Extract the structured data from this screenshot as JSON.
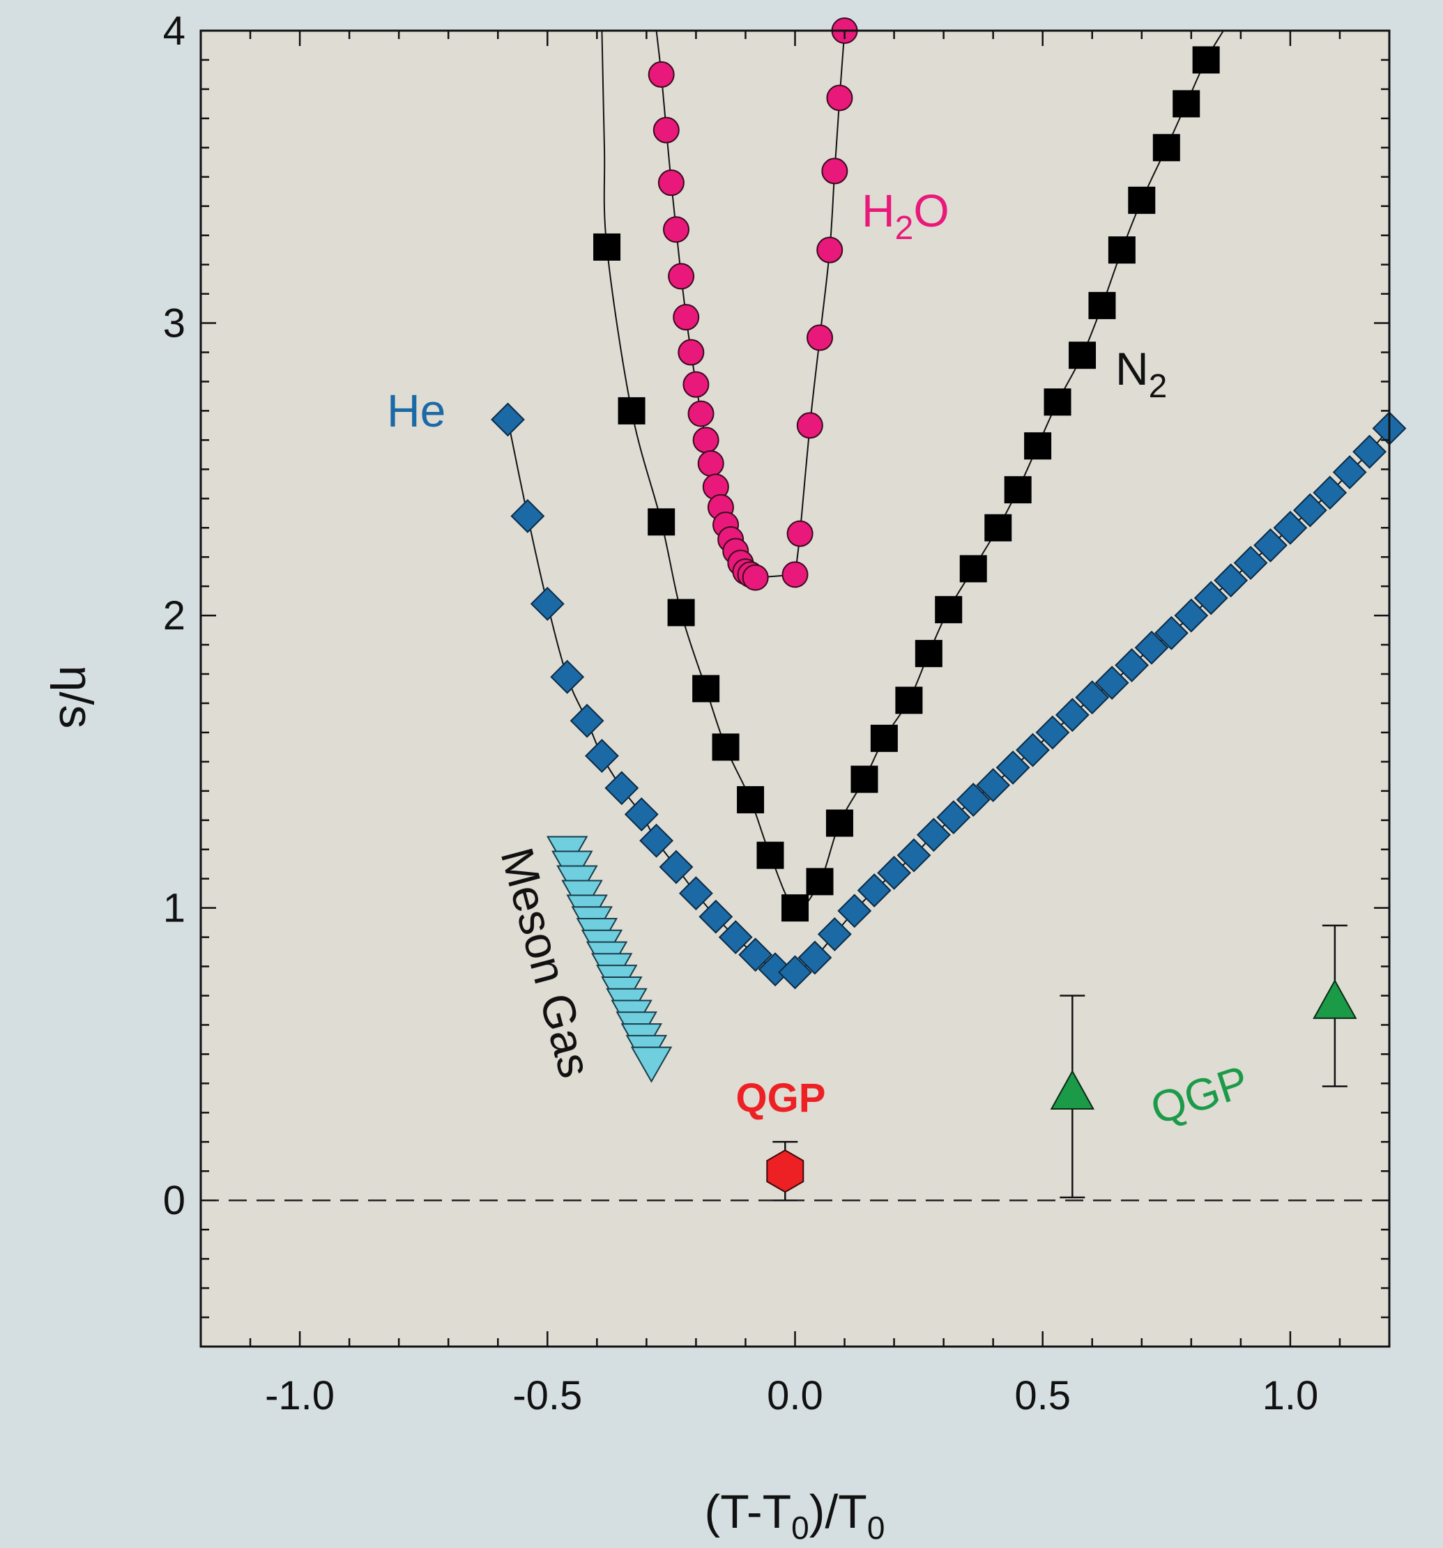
{
  "chart_data": {
    "type": "scatter",
    "title": "",
    "xlabel": "(T-T0)/T0",
    "xlabel_parts": {
      "main": "(T-T",
      "sub": "0",
      "mid": ")/T",
      "sub2": "0"
    },
    "ylabel": "η/s",
    "xlim": [
      -1.2,
      1.2
    ],
    "ylim": [
      -0.5,
      4.0
    ],
    "x_ticks": [
      -1.0,
      -0.5,
      0.0,
      0.5,
      1.0
    ],
    "x_tick_labels": [
      "-1.0",
      "-0.5",
      "0.0",
      "0.5",
      "1.0"
    ],
    "y_ticks": [
      0,
      1,
      2,
      3,
      4
    ],
    "y_tick_labels": [
      "0",
      "1",
      "2",
      "3",
      "4"
    ],
    "grid": false,
    "zero_reference_line": {
      "y": 0,
      "style": "dashed"
    },
    "colors": {
      "page_background": "#d5dfe1",
      "plot_background": "#dedcd3",
      "he": "#1b6aa5",
      "n2": "#000000",
      "h2o": "#e8197a",
      "meson": "#6fcfdf",
      "qgp_red": "#ed2024",
      "qgp_green": "#1b9a48"
    },
    "series": [
      {
        "name": "He",
        "label": "He",
        "marker": "diamond",
        "color": "#1b6aa5",
        "x": [
          -0.58,
          -0.54,
          -0.5,
          -0.46,
          -0.42,
          -0.39,
          -0.35,
          -0.31,
          -0.28,
          -0.24,
          -0.2,
          -0.16,
          -0.12,
          -0.08,
          -0.04,
          0.0,
          0.04,
          0.08,
          0.12,
          0.16,
          0.2,
          0.24,
          0.28,
          0.32,
          0.36,
          0.4,
          0.44,
          0.48,
          0.52,
          0.56,
          0.6,
          0.64,
          0.68,
          0.72,
          0.76,
          0.8,
          0.84,
          0.88,
          0.92,
          0.96,
          1.0,
          1.04,
          1.08,
          1.12,
          1.16,
          1.2
        ],
        "y": [
          2.67,
          2.34,
          2.04,
          1.79,
          1.64,
          1.52,
          1.41,
          1.32,
          1.23,
          1.14,
          1.05,
          0.97,
          0.9,
          0.84,
          0.79,
          0.78,
          0.83,
          0.91,
          0.99,
          1.06,
          1.12,
          1.18,
          1.25,
          1.31,
          1.37,
          1.42,
          1.48,
          1.54,
          1.6,
          1.66,
          1.72,
          1.77,
          1.83,
          1.89,
          1.94,
          2.0,
          2.06,
          2.12,
          2.18,
          2.24,
          2.3,
          2.36,
          2.42,
          2.49,
          2.56,
          2.64
        ]
      },
      {
        "name": "N2",
        "label_main": "N",
        "label_sub": "2",
        "marker": "square",
        "color": "#000000",
        "line_x": [
          -0.39,
          -0.385
        ],
        "line_y": [
          4.0,
          3.6
        ],
        "x": [
          -0.38,
          -0.33,
          -0.27,
          -0.23,
          -0.18,
          -0.14,
          -0.09,
          -0.05,
          0.0,
          0.05,
          0.09,
          0.14,
          0.18,
          0.23,
          0.27,
          0.31,
          0.36,
          0.41,
          0.45,
          0.49,
          0.53,
          0.58,
          0.62,
          0.66,
          0.7,
          0.75,
          0.79,
          0.83
        ],
        "y": [
          3.26,
          2.7,
          2.32,
          2.01,
          1.75,
          1.55,
          1.37,
          1.18,
          1.0,
          1.09,
          1.29,
          1.44,
          1.58,
          1.71,
          1.87,
          2.02,
          2.16,
          2.3,
          2.43,
          2.58,
          2.73,
          2.89,
          3.06,
          3.25,
          3.42,
          3.6,
          3.75,
          3.9
        ]
      },
      {
        "name": "H2O",
        "label_main": "H",
        "label_sub": "2",
        "label_tail": "O",
        "marker": "circle",
        "color": "#e8197a",
        "x": [
          -0.27,
          -0.26,
          -0.25,
          -0.24,
          -0.23,
          -0.22,
          -0.21,
          -0.2,
          -0.19,
          -0.18,
          -0.17,
          -0.16,
          -0.15,
          -0.14,
          -0.13,
          -0.12,
          -0.11,
          -0.1,
          -0.09,
          -0.08,
          -0.07,
          -0.06,
          -0.05,
          -0.04,
          -0.03,
          -0.02,
          -0.01,
          0.0,
          0.01,
          0.03,
          0.04,
          0.05,
          0.06,
          0.07,
          0.08,
          0.09,
          0.1
        ],
        "y": [
          3.85,
          3.65,
          3.47,
          3.31,
          3.16,
          3.02,
          2.9,
          2.79,
          2.69,
          2.6,
          2.52,
          2.44,
          2.37,
          2.32,
          2.26,
          2.22,
          2.18,
          2.15,
          2.13,
          2.13,
          2.14,
          2.15,
          2.17,
          2.19,
          2.22,
          2.25,
          2.28,
          2.14,
          2.28,
          2.65,
          2.95,
          3.25,
          3.52,
          3.77,
          4.0,
          4.0,
          4.0
        ],
        "x_points": [
          -0.27,
          -0.26,
          -0.25,
          -0.24,
          -0.23,
          -0.22,
          -0.21,
          -0.2,
          -0.19,
          -0.18,
          -0.17,
          -0.16,
          -0.15,
          -0.14,
          -0.13,
          -0.12,
          -0.11,
          -0.1,
          -0.09,
          -0.08,
          0.0,
          0.01,
          0.03,
          0.05,
          0.07,
          0.08,
          0.09,
          0.1
        ],
        "y_points": [
          3.85,
          3.66,
          3.48,
          3.32,
          3.16,
          3.02,
          2.9,
          2.79,
          2.69,
          2.6,
          2.52,
          2.44,
          2.37,
          2.31,
          2.26,
          2.22,
          2.18,
          2.15,
          2.14,
          2.13,
          2.14,
          2.28,
          2.65,
          2.95,
          3.25,
          3.52,
          3.77,
          4.0
        ]
      },
      {
        "name": "Meson Gas",
        "label": "Meson Gas",
        "marker": "triangle-down",
        "color": "#6fcfdf",
        "x": [
          -0.46,
          -0.45,
          -0.44,
          -0.43,
          -0.42,
          -0.41,
          -0.4,
          -0.39,
          -0.38,
          -0.37,
          -0.36,
          -0.35,
          -0.34,
          -0.33,
          -0.32,
          -0.31,
          -0.3,
          -0.29
        ],
        "y": [
          1.19,
          1.14,
          1.09,
          1.04,
          0.99,
          0.95,
          0.91,
          0.87,
          0.83,
          0.79,
          0.75,
          0.71,
          0.67,
          0.63,
          0.59,
          0.55,
          0.51,
          0.47
        ]
      }
    ],
    "qgp_points": [
      {
        "name": "QGP",
        "label": "QGP",
        "marker": "hexagon",
        "color": "#ed2024",
        "x": -0.02,
        "y": 0.1,
        "err_low": 0.1,
        "err_high": 0.1
      },
      {
        "name": "QGP",
        "label": "QGP",
        "marker": "triangle-up",
        "color": "#1b9a48",
        "x": 0.56,
        "y": 0.37,
        "err_low": 0.36,
        "err_high": 0.33
      },
      {
        "name": "QGP",
        "label": "",
        "marker": "triangle-up",
        "color": "#1b9a48",
        "x": 1.09,
        "y": 0.68,
        "err_low": 0.29,
        "err_high": 0.26
      }
    ],
    "labels": {
      "he": "He",
      "meson": "Meson Gas",
      "qgp_red": "QGP",
      "qgp_green": "QGP"
    }
  }
}
